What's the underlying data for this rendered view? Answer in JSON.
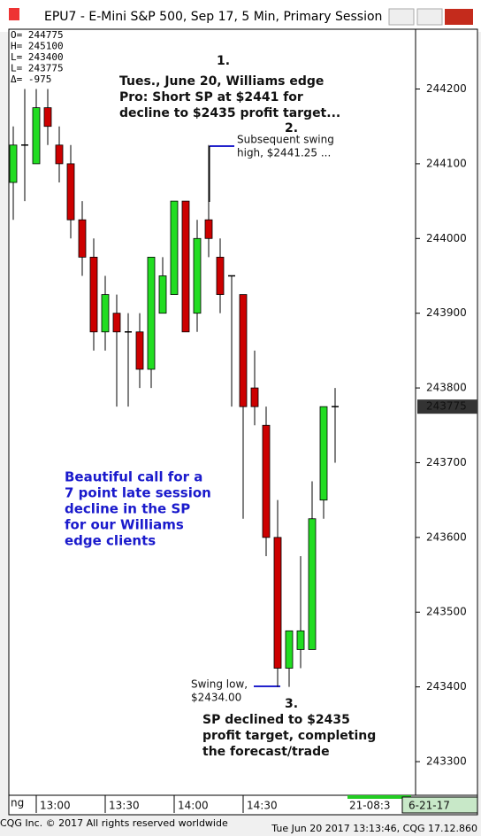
{
  "window_title": "EPU7 - E-Mini S&P 500, Sep 17, 5 Min, Primary Session",
  "footer_left": "CQG Inc. © 2017 All rights reserved worldwide",
  "footer_right": "Tue Jun 20 2017 13:13:46, CQG 17.12.860",
  "info_box": [
    "O=  244775",
    "H=  245100",
    "L=  243400",
    "L=  243775",
    "Δ=     -975"
  ],
  "chart_data": {
    "type": "candlestick",
    "categories": [
      null,
      null,
      "13:00",
      null,
      null,
      null,
      null,
      null,
      "13:30",
      null,
      null,
      null,
      null,
      null,
      "14:00",
      null,
      null,
      null,
      null,
      null,
      "14:30",
      null,
      null,
      null,
      null,
      null,
      null,
      null,
      null
    ],
    "open": [
      244075,
      244125,
      244100,
      244175,
      244125,
      244100,
      244025,
      243975,
      243875,
      243900,
      243875,
      243875,
      243825,
      243900,
      243925,
      244050,
      243900,
      244025,
      243975,
      243950,
      243925,
      243800,
      243750,
      243600,
      243425,
      243450,
      243450,
      243650,
      243775
    ],
    "high": [
      244150,
      244200,
      244200,
      244200,
      244150,
      244125,
      244050,
      244000,
      243950,
      243925,
      243900,
      243900,
      243975,
      243975,
      244050,
      244050,
      244025,
      244125,
      244000,
      243950,
      243925,
      243850,
      243775,
      243650,
      243475,
      243575,
      243675,
      243775,
      243800
    ],
    "low": [
      244025,
      244050,
      244100,
      244125,
      244075,
      244000,
      243950,
      243850,
      243850,
      243775,
      243775,
      243800,
      243800,
      243900,
      243925,
      243875,
      243875,
      243975,
      243900,
      243775,
      243625,
      243750,
      243575,
      243400,
      243400,
      243425,
      243450,
      243625,
      243700
    ],
    "close": [
      244125,
      244125,
      244175,
      244150,
      244100,
      244025,
      243975,
      243875,
      243925,
      243875,
      243875,
      243825,
      243975,
      243950,
      244050,
      243875,
      244000,
      244000,
      243925,
      243950,
      243775,
      243775,
      243600,
      243425,
      243475,
      243475,
      243625,
      243775,
      243775
    ],
    "up_color": "#22dd22",
    "down_color": "#cc0000",
    "ylim": [
      243255,
      244280
    ],
    "yticks": [
      243300,
      243400,
      243500,
      243600,
      243700,
      243800,
      243900,
      244000,
      244100,
      244200
    ],
    "last_price": 243775,
    "x_extra_labels": [
      "21-08:3",
      "6-21-17"
    ],
    "corner_label": "ng",
    "annotations": {
      "note1_number": "1.",
      "note1": [
        "Tues., June 20, Williams edge",
        "Pro: Short SP at $2441 for",
        "decline to $2435 profit target..."
      ],
      "note2_number": "2.",
      "note2": [
        "Subsequent swing",
        "high, $2441.25 ..."
      ],
      "blue_note": [
        "Beautiful call for a",
        "7 point late session",
        "decline in the SP",
        "for our Williams",
        "edge clients"
      ],
      "swing_low": [
        "Swing low,",
        "$2434.00"
      ],
      "note3_number": "3.",
      "note3": [
        "SP declined to $2435",
        "profit target, completing",
        "the forecast/trade"
      ]
    }
  }
}
